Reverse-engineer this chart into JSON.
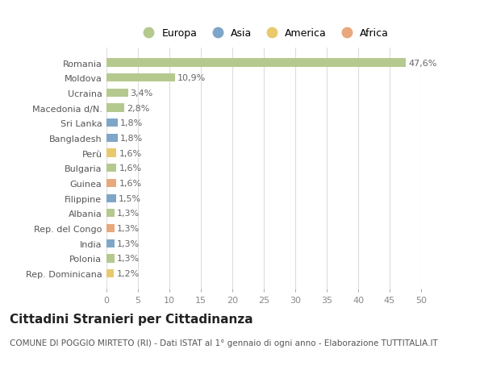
{
  "categories": [
    "Rep. Dominicana",
    "Polonia",
    "India",
    "Rep. del Congo",
    "Albania",
    "Filippine",
    "Guinea",
    "Bulgaria",
    "Perù",
    "Bangladesh",
    "Sri Lanka",
    "Macedonia d/N.",
    "Ucraina",
    "Moldova",
    "Romania"
  ],
  "values": [
    1.2,
    1.3,
    1.3,
    1.3,
    1.3,
    1.5,
    1.6,
    1.6,
    1.6,
    1.8,
    1.8,
    2.8,
    3.4,
    10.9,
    47.6
  ],
  "labels": [
    "1,2%",
    "1,3%",
    "1,3%",
    "1,3%",
    "1,3%",
    "1,5%",
    "1,6%",
    "1,6%",
    "1,6%",
    "1,8%",
    "1,8%",
    "2,8%",
    "3,4%",
    "10,9%",
    "47,6%"
  ],
  "continents": [
    "America",
    "Europa",
    "Asia",
    "Africa",
    "Europa",
    "Asia",
    "Africa",
    "Europa",
    "America",
    "Asia",
    "Asia",
    "Europa",
    "Europa",
    "Europa",
    "Europa"
  ],
  "colors": {
    "Europa": "#b5c98e",
    "Asia": "#7ea6c8",
    "America": "#e8c96e",
    "Africa": "#e8a87c"
  },
  "legend_order": [
    "Europa",
    "Asia",
    "America",
    "Africa"
  ],
  "xlim": [
    0,
    50
  ],
  "xticks": [
    0,
    5,
    10,
    15,
    20,
    25,
    30,
    35,
    40,
    45,
    50
  ],
  "title": "Cittadini Stranieri per Cittadinanza",
  "subtitle": "COMUNE DI POGGIO MIRTETO (RI) - Dati ISTAT al 1° gennaio di ogni anno - Elaborazione TUTTITALIA.IT",
  "bg_color": "#ffffff",
  "grid_color": "#dddddd",
  "bar_height": 0.55,
  "label_fontsize": 8,
  "ytick_fontsize": 8,
  "xtick_fontsize": 8,
  "title_fontsize": 11,
  "subtitle_fontsize": 7.5,
  "legend_fontsize": 9
}
